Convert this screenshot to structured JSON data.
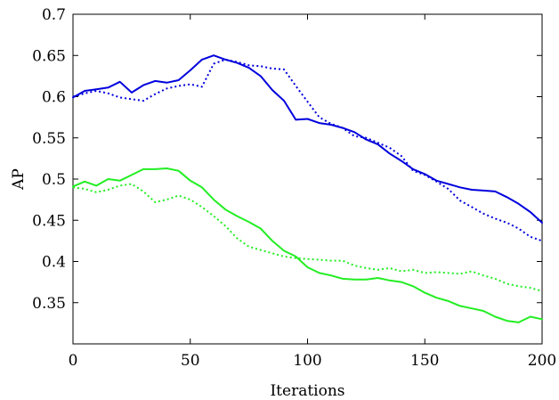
{
  "chart_data": {
    "type": "line",
    "title": "",
    "xlabel": "Iterations",
    "ylabel": "AP",
    "xlim": [
      0,
      200
    ],
    "ylim": [
      0.3,
      0.7
    ],
    "xticks": [
      0,
      50,
      100,
      150,
      200
    ],
    "yticks": [
      0.35,
      0.4,
      0.45,
      0.5,
      0.55,
      0.6,
      0.65,
      0.7
    ],
    "grid": false,
    "legend": "none",
    "series": [
      {
        "color": "#0000dd",
        "style": "solid",
        "x": [
          0,
          5,
          10,
          15,
          20,
          25,
          30,
          35,
          40,
          45,
          50,
          55,
          60,
          65,
          70,
          75,
          80,
          85,
          90,
          95,
          100,
          105,
          110,
          115,
          120,
          125,
          130,
          135,
          140,
          145,
          150,
          155,
          160,
          165,
          170,
          175,
          180,
          185,
          190,
          195,
          200
        ],
        "y": [
          0.599,
          0.607,
          0.609,
          0.611,
          0.618,
          0.605,
          0.614,
          0.619,
          0.617,
          0.62,
          0.632,
          0.645,
          0.65,
          0.645,
          0.641,
          0.635,
          0.625,
          0.608,
          0.595,
          0.572,
          0.573,
          0.568,
          0.566,
          0.562,
          0.557,
          0.548,
          0.542,
          0.531,
          0.522,
          0.512,
          0.506,
          0.498,
          0.494,
          0.49,
          0.487,
          0.486,
          0.485,
          0.478,
          0.47,
          0.46,
          0.447
        ]
      },
      {
        "color": "#0000dd",
        "style": "dotted",
        "x": [
          0,
          5,
          10,
          15,
          20,
          25,
          30,
          35,
          40,
          45,
          50,
          55,
          60,
          65,
          70,
          75,
          80,
          85,
          90,
          95,
          100,
          105,
          110,
          115,
          120,
          125,
          130,
          135,
          140,
          145,
          150,
          155,
          160,
          165,
          170,
          175,
          180,
          185,
          190,
          195,
          200
        ],
        "y": [
          0.6,
          0.604,
          0.607,
          0.604,
          0.599,
          0.597,
          0.595,
          0.603,
          0.61,
          0.613,
          0.615,
          0.612,
          0.64,
          0.645,
          0.642,
          0.638,
          0.637,
          0.634,
          0.633,
          0.613,
          0.594,
          0.575,
          0.567,
          0.562,
          0.552,
          0.55,
          0.544,
          0.538,
          0.528,
          0.51,
          0.505,
          0.497,
          0.488,
          0.474,
          0.466,
          0.458,
          0.452,
          0.447,
          0.44,
          0.43,
          0.425
        ]
      },
      {
        "color": "#22ee22",
        "style": "solid",
        "x": [
          0,
          5,
          10,
          15,
          20,
          25,
          30,
          35,
          40,
          45,
          50,
          55,
          60,
          65,
          70,
          75,
          80,
          85,
          90,
          95,
          100,
          105,
          110,
          115,
          120,
          125,
          130,
          135,
          140,
          145,
          150,
          155,
          160,
          165,
          170,
          175,
          180,
          185,
          190,
          195,
          200
        ],
        "y": [
          0.491,
          0.497,
          0.492,
          0.5,
          0.498,
          0.505,
          0.512,
          0.512,
          0.513,
          0.51,
          0.498,
          0.49,
          0.475,
          0.463,
          0.455,
          0.448,
          0.44,
          0.425,
          0.413,
          0.406,
          0.393,
          0.386,
          0.383,
          0.379,
          0.378,
          0.378,
          0.38,
          0.377,
          0.375,
          0.37,
          0.362,
          0.356,
          0.352,
          0.346,
          0.343,
          0.34,
          0.333,
          0.328,
          0.326,
          0.333,
          0.33
        ]
      },
      {
        "color": "#22ee22",
        "style": "dotted",
        "x": [
          0,
          5,
          10,
          15,
          20,
          25,
          30,
          35,
          40,
          45,
          50,
          55,
          60,
          65,
          70,
          75,
          80,
          85,
          90,
          95,
          100,
          105,
          110,
          115,
          120,
          125,
          130,
          135,
          140,
          145,
          150,
          155,
          160,
          165,
          170,
          175,
          180,
          185,
          190,
          195,
          200
        ],
        "y": [
          0.49,
          0.488,
          0.484,
          0.487,
          0.492,
          0.494,
          0.485,
          0.472,
          0.475,
          0.48,
          0.475,
          0.466,
          0.455,
          0.443,
          0.428,
          0.418,
          0.414,
          0.41,
          0.406,
          0.404,
          0.403,
          0.402,
          0.401,
          0.401,
          0.395,
          0.392,
          0.39,
          0.392,
          0.388,
          0.39,
          0.386,
          0.387,
          0.386,
          0.385,
          0.388,
          0.383,
          0.379,
          0.373,
          0.37,
          0.368,
          0.364
        ]
      }
    ]
  }
}
